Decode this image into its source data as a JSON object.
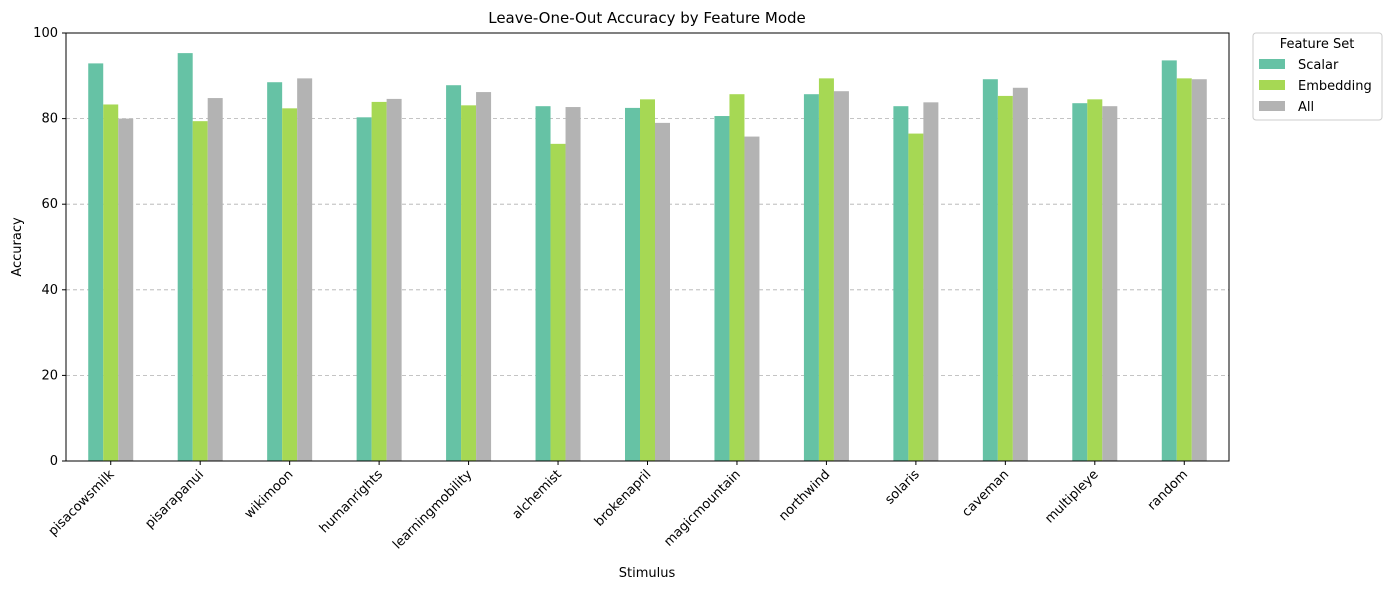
{
  "chart_data": {
    "type": "bar",
    "title": "Leave-One-Out Accuracy by Feature Mode",
    "xlabel": "Stimulus",
    "ylabel": "Accuracy",
    "ylim": [
      0,
      100
    ],
    "yticks": [
      0,
      20,
      40,
      60,
      80,
      100
    ],
    "grid": "y, dashed",
    "legend_title": "Feature Set",
    "legend_placement": "outside-top-right",
    "categories": [
      "pisacowsmilk",
      "pisarapanui",
      "wikimoon",
      "humanrights",
      "learningmobility",
      "alchemist",
      "brokenapril",
      "magicmountain",
      "northwind",
      "solaris",
      "caveman",
      "multipleye",
      "random"
    ],
    "series": [
      {
        "name": "Scalar",
        "color": "#66c2a5",
        "values": [
          92.9,
          95.3,
          88.5,
          80.3,
          87.8,
          82.9,
          82.5,
          80.6,
          85.7,
          82.9,
          89.2,
          83.6,
          93.6
        ]
      },
      {
        "name": "Embedding",
        "color": "#a6d854",
        "values": [
          83.3,
          79.4,
          82.4,
          83.9,
          83.1,
          74.1,
          84.5,
          85.7,
          89.4,
          76.5,
          85.3,
          84.5,
          89.4
        ]
      },
      {
        "name": "All",
        "color": "#b3b3b3",
        "values": [
          80.0,
          84.8,
          89.4,
          84.6,
          86.2,
          82.7,
          79.0,
          75.8,
          86.4,
          83.8,
          87.2,
          82.9,
          89.2
        ]
      }
    ]
  }
}
